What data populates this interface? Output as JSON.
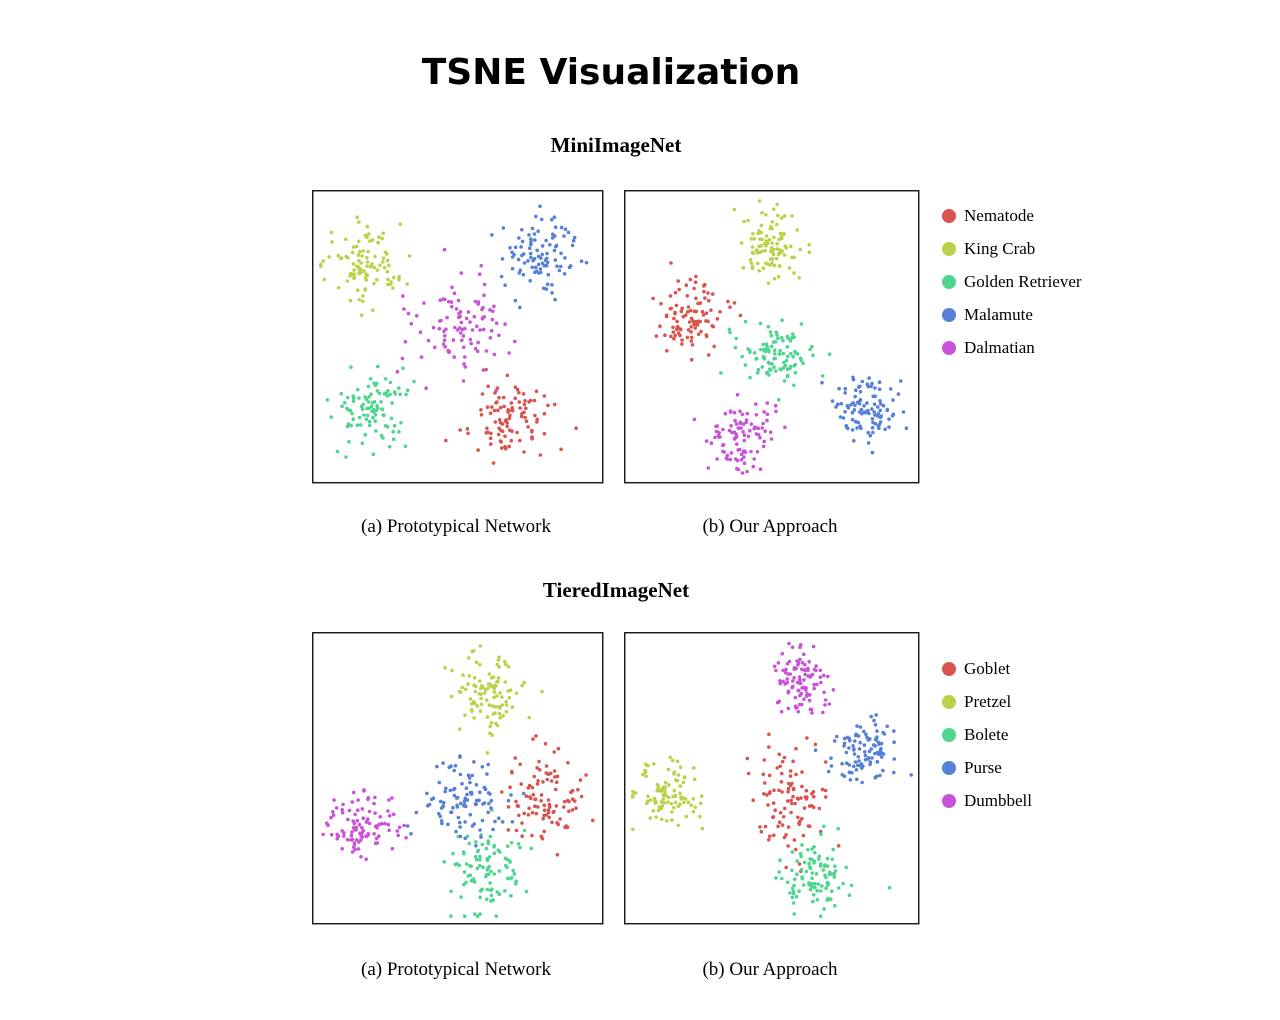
{
  "title": "TSNE Visualization",
  "colors": {
    "red": "#d9534f",
    "yellow": "#b9d24a",
    "green": "#4fd58e",
    "blue": "#5580d6",
    "magenta": "#c853d6"
  },
  "sections": [
    {
      "title": "MiniImageNet",
      "captions": [
        "(a) Prototypical Network",
        "(b) Our Approach"
      ],
      "legend": [
        {
          "label": "Nematode",
          "color": "#d9534f"
        },
        {
          "label": "King Crab",
          "color": "#b9d24a"
        },
        {
          "label": "Golden Retriever",
          "color": "#4fd58e"
        },
        {
          "label": "Malamute",
          "color": "#5580d6"
        },
        {
          "label": "Dalmatian",
          "color": "#c853d6"
        }
      ]
    },
    {
      "title": "TieredImageNet",
      "captions": [
        "(a) Prototypical Network",
        "(b) Our Approach"
      ],
      "legend": [
        {
          "label": "Goblet",
          "color": "#d9534f"
        },
        {
          "label": "Pretzel",
          "color": "#b9d24a"
        },
        {
          "label": "Bolete",
          "color": "#4fd58e"
        },
        {
          "label": "Purse",
          "color": "#5580d6"
        },
        {
          "label": "Dumbbell",
          "color": "#c853d6"
        }
      ]
    }
  ],
  "chart_data": [
    {
      "type": "scatter",
      "dataset": "MiniImageNet",
      "caption": "(a) Prototypical Network",
      "xlim": [
        0,
        100
      ],
      "ylim": [
        0,
        100
      ],
      "grid": false,
      "series": [
        {
          "name": "Nematode",
          "color": "#d9534f",
          "clusters": [
            {
              "cx": 68,
              "cy": 22,
              "sx": 7,
              "sy": 7,
              "n": 100
            }
          ]
        },
        {
          "name": "King Crab",
          "color": "#b9d24a",
          "clusters": [
            {
              "cx": 17,
              "cy": 77,
              "sx": 7,
              "sy": 7,
              "n": 100
            }
          ]
        },
        {
          "name": "Golden Retriever",
          "color": "#4fd58e",
          "clusters": [
            {
              "cx": 19,
              "cy": 23,
              "sx": 7,
              "sy": 7,
              "n": 100
            }
          ]
        },
        {
          "name": "Malamute",
          "color": "#5580d6",
          "clusters": [
            {
              "cx": 78,
              "cy": 79,
              "sx": 7,
              "sy": 7,
              "n": 100
            }
          ]
        },
        {
          "name": "Dalmatian",
          "color": "#c853d6",
          "clusters": [
            {
              "cx": 49,
              "cy": 54,
              "sx": 9,
              "sy": 9,
              "n": 100
            }
          ]
        }
      ]
    },
    {
      "type": "scatter",
      "dataset": "MiniImageNet",
      "caption": "(b) Our Approach",
      "xlim": [
        0,
        100
      ],
      "ylim": [
        0,
        100
      ],
      "grid": false,
      "series": [
        {
          "name": "Nematode",
          "color": "#d9534f",
          "clusters": [
            {
              "cx": 22,
              "cy": 58,
              "sx": 6,
              "sy": 6,
              "n": 100
            }
          ]
        },
        {
          "name": "King Crab",
          "color": "#b9d24a",
          "clusters": [
            {
              "cx": 50,
              "cy": 82,
              "sx": 5,
              "sy": 6,
              "n": 100
            }
          ]
        },
        {
          "name": "Golden Retriever",
          "color": "#4fd58e",
          "clusters": [
            {
              "cx": 51,
              "cy": 44,
              "sx": 6,
              "sy": 6,
              "n": 100
            }
          ]
        },
        {
          "name": "Malamute",
          "color": "#5580d6",
          "clusters": [
            {
              "cx": 84,
              "cy": 25,
              "sx": 6,
              "sy": 6,
              "n": 100
            }
          ]
        },
        {
          "name": "Dalmatian",
          "color": "#c853d6",
          "clusters": [
            {
              "cx": 39,
              "cy": 16,
              "sx": 6,
              "sy": 6,
              "n": 100
            }
          ]
        }
      ]
    },
    {
      "type": "scatter",
      "dataset": "TieredImageNet",
      "caption": "(a) Prototypical Network",
      "xlim": [
        0,
        100
      ],
      "ylim": [
        0,
        100
      ],
      "grid": false,
      "series": [
        {
          "name": "Goblet",
          "color": "#d9534f",
          "clusters": [
            {
              "cx": 82,
              "cy": 44,
              "sx": 7,
              "sy": 8,
              "n": 100
            }
          ]
        },
        {
          "name": "Pretzel",
          "color": "#b9d24a",
          "clusters": [
            {
              "cx": 61,
              "cy": 81,
              "sx": 6,
              "sy": 7,
              "n": 100
            }
          ]
        },
        {
          "name": "Bolete",
          "color": "#4fd58e",
          "clusters": [
            {
              "cx": 61,
              "cy": 17,
              "sx": 6,
              "sy": 8,
              "n": 100
            }
          ]
        },
        {
          "name": "Purse",
          "color": "#5580d6",
          "clusters": [
            {
              "cx": 53,
              "cy": 42,
              "sx": 9,
              "sy": 7,
              "n": 100
            }
          ]
        },
        {
          "name": "Dumbbell",
          "color": "#c853d6",
          "clusters": [
            {
              "cx": 15,
              "cy": 33,
              "sx": 6,
              "sy": 6,
              "n": 100
            }
          ]
        }
      ]
    },
    {
      "type": "scatter",
      "dataset": "TieredImageNet",
      "caption": "(b) Our Approach",
      "xlim": [
        0,
        100
      ],
      "ylim": [
        0,
        100
      ],
      "grid": false,
      "series": [
        {
          "name": "Goblet",
          "color": "#d9534f",
          "clusters": [
            {
              "cx": 56,
              "cy": 44,
              "sx": 7,
              "sy": 9,
              "n": 100
            }
          ]
        },
        {
          "name": "Pretzel",
          "color": "#b9d24a",
          "clusters": [
            {
              "cx": 13,
              "cy": 45,
              "sx": 6,
              "sy": 5,
              "n": 100
            }
          ]
        },
        {
          "name": "Bolete",
          "color": "#4fd58e",
          "clusters": [
            {
              "cx": 65,
              "cy": 15,
              "sx": 6,
              "sy": 6,
              "n": 100
            }
          ]
        },
        {
          "name": "Purse",
          "color": "#5580d6",
          "clusters": [
            {
              "cx": 83,
              "cy": 60,
              "sx": 6,
              "sy": 5,
              "n": 100
            }
          ]
        },
        {
          "name": "Dumbbell",
          "color": "#c853d6",
          "clusters": [
            {
              "cx": 61,
              "cy": 86,
              "sx": 5,
              "sy": 6,
              "n": 100
            }
          ]
        }
      ]
    }
  ]
}
